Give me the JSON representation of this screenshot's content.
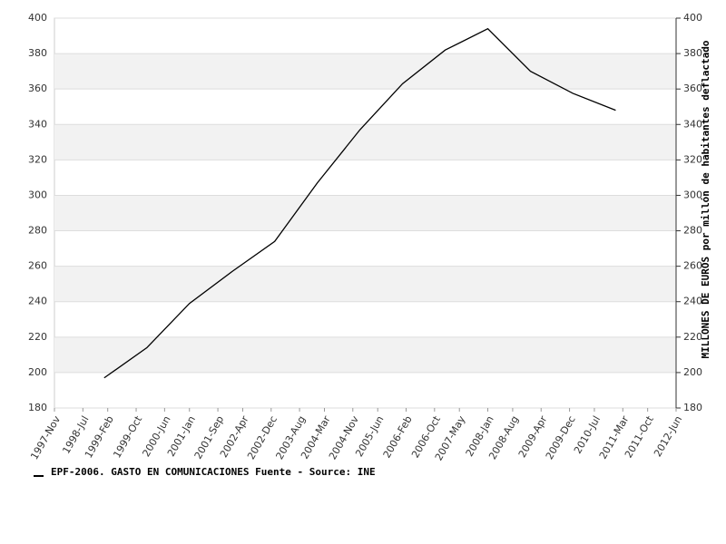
{
  "chart_data": {
    "type": "line",
    "y_axis_label": "MILLONES DE EUROS por millón de habitantes deflactado",
    "x": [
      1999,
      2000,
      2001,
      2002,
      2003,
      2004,
      2005,
      2006,
      2007,
      2008,
      2009,
      2010,
      2011
    ],
    "series": [
      {
        "name": "EPF-2006. GASTO EN COMUNICACIONES  Fuente - Source: INE",
        "color": "#000000",
        "values": [
          197,
          214,
          239,
          257,
          274,
          307,
          337,
          363,
          382,
          394,
          370,
          357.5,
          348
        ]
      }
    ],
    "xlim": [
      1997.833,
      2012.417
    ],
    "xticks": [
      {
        "value": 1997.833,
        "label": "1997-Nov"
      },
      {
        "value": 1998.5,
        "label": "1998-Jul"
      },
      {
        "value": 1999.083,
        "label": "1999-Feb"
      },
      {
        "value": 1999.75,
        "label": "1999-Oct"
      },
      {
        "value": 2000.417,
        "label": "2000-Jun"
      },
      {
        "value": 2001.0,
        "label": "2001-Jan"
      },
      {
        "value": 2001.667,
        "label": "2001-Sep"
      },
      {
        "value": 2002.25,
        "label": "2002-Apr"
      },
      {
        "value": 2002.917,
        "label": "2002-Dec"
      },
      {
        "value": 2003.583,
        "label": "2003-Aug"
      },
      {
        "value": 2004.167,
        "label": "2004-Mar"
      },
      {
        "value": 2004.833,
        "label": "2004-Nov"
      },
      {
        "value": 2005.417,
        "label": "2005-Jun"
      },
      {
        "value": 2006.083,
        "label": "2006-Feb"
      },
      {
        "value": 2006.75,
        "label": "2006-Oct"
      },
      {
        "value": 2007.333,
        "label": "2007-May"
      },
      {
        "value": 2008.0,
        "label": "2008-Jan"
      },
      {
        "value": 2008.583,
        "label": "2008-Aug"
      },
      {
        "value": 2009.25,
        "label": "2009-Apr"
      },
      {
        "value": 2009.917,
        "label": "2009-Dec"
      },
      {
        "value": 2010.5,
        "label": "2010-Jul"
      },
      {
        "value": 2011.167,
        "label": "2011-Mar"
      },
      {
        "value": 2011.75,
        "label": "2011-Oct"
      },
      {
        "value": 2012.417,
        "label": "2012-Jun"
      }
    ],
    "ylim": [
      180,
      400
    ],
    "yticks": [
      180,
      200,
      220,
      240,
      260,
      280,
      300,
      320,
      340,
      360,
      380,
      400
    ],
    "grid": true
  }
}
